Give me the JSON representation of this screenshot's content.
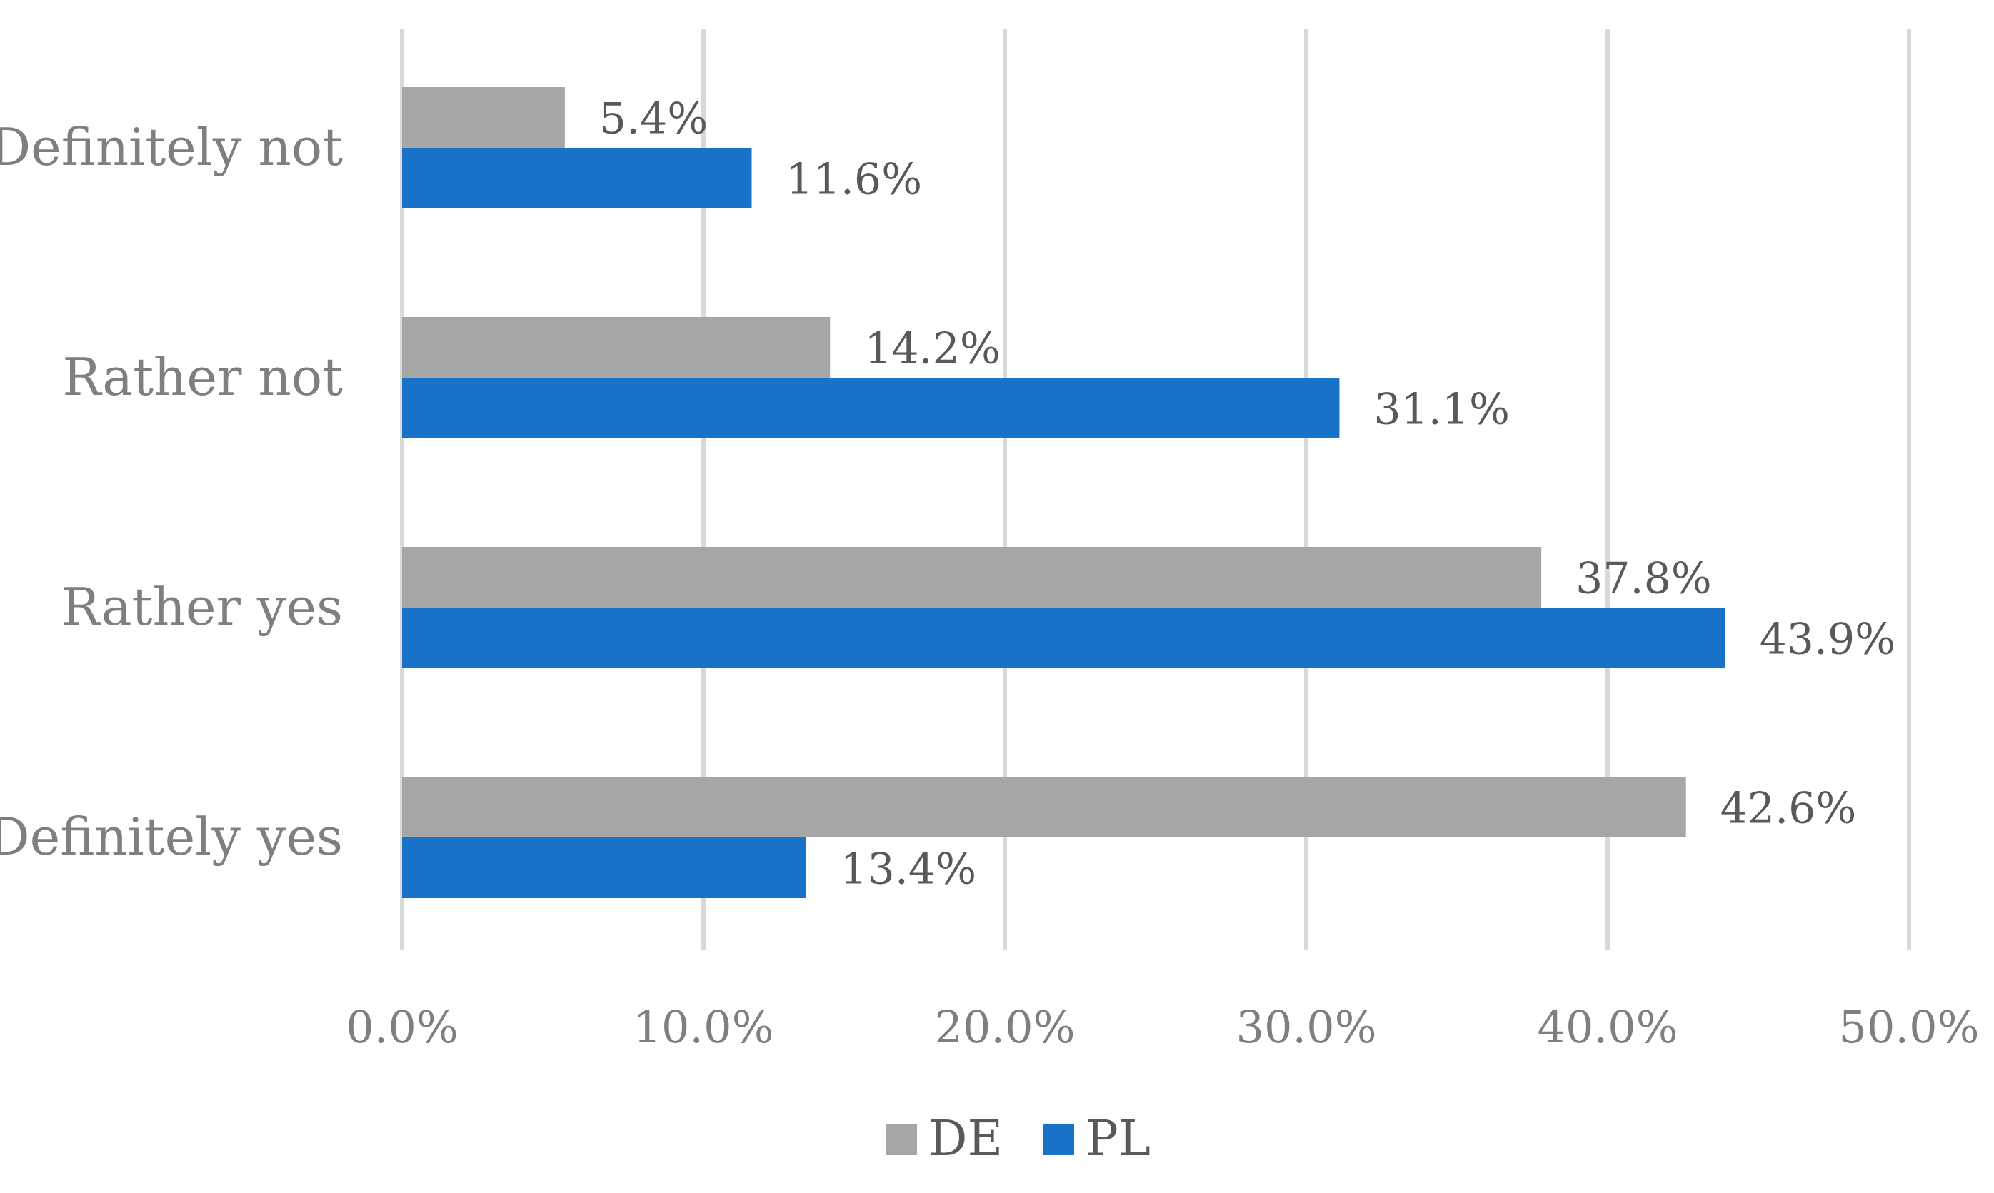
{
  "chart_data": {
    "type": "bar",
    "orientation": "horizontal",
    "categories": [
      "Definitely not",
      "Rather not",
      "Rather yes",
      "Definitely yes"
    ],
    "series": [
      {
        "name": "DE",
        "values": [
          5.4,
          14.2,
          37.8,
          42.6
        ],
        "labels": [
          "5.4%",
          "14.2%",
          "37.8%",
          "42.6%"
        ],
        "color": "#a6a6a6"
      },
      {
        "name": "PL",
        "values": [
          11.6,
          31.1,
          43.9,
          13.4
        ],
        "labels": [
          "11.6%",
          "31.1%",
          "43.9%",
          "13.4%"
        ],
        "color": "#1873c8"
      }
    ],
    "xlim": [
      0,
      50
    ],
    "x_ticks": [
      0,
      10,
      20,
      30,
      40,
      50
    ],
    "x_tick_labels": [
      "0.0%",
      "10.0%",
      "20.0%",
      "30.0%",
      "40.0%",
      "50.0%"
    ],
    "grid": true,
    "legend_position": "bottom",
    "title": "",
    "xlabel": "",
    "ylabel": ""
  }
}
